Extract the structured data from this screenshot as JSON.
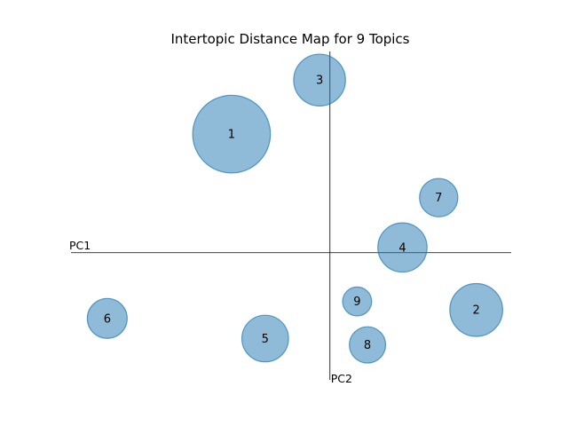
{
  "chart_data": {
    "type": "scatter",
    "title": "Intertopic Distance Map for 9 Topics",
    "xlabel": "PC1",
    "ylabel": "PC2",
    "xlim": [
      -1.0,
      0.7
    ],
    "ylim": [
      -0.6,
      0.95
    ],
    "grid": false,
    "legend": "none",
    "bubble_color": "#1f77b4",
    "points": [
      {
        "label": "1",
        "x": -0.38,
        "y": 0.56,
        "size": 0.15
      },
      {
        "label": "2",
        "x": 0.565,
        "y": -0.27,
        "size": 0.102
      },
      {
        "label": "3",
        "x": -0.04,
        "y": 0.815,
        "size": 0.1
      },
      {
        "label": "4",
        "x": 0.28,
        "y": 0.025,
        "size": 0.095
      },
      {
        "label": "5",
        "x": -0.25,
        "y": -0.405,
        "size": 0.09
      },
      {
        "label": "6",
        "x": -0.86,
        "y": -0.31,
        "size": 0.077
      },
      {
        "label": "7",
        "x": 0.42,
        "y": 0.26,
        "size": 0.074
      },
      {
        "label": "8",
        "x": 0.145,
        "y": -0.435,
        "size": 0.07
      },
      {
        "label": "9",
        "x": 0.105,
        "y": -0.23,
        "size": 0.056
      }
    ]
  }
}
